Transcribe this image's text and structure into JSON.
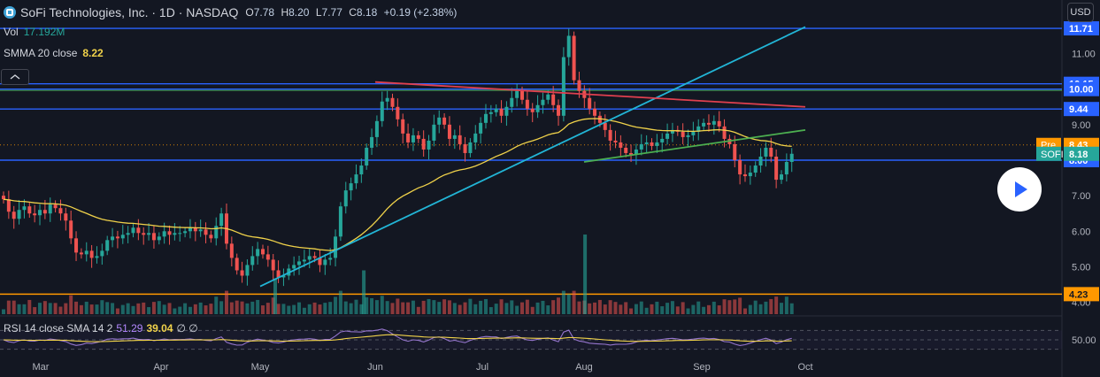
{
  "header": {
    "symbol_title": "SoFi Technologies, Inc. · 1D · NASDAQ",
    "ohlc": {
      "open_label": "O",
      "open": "7.78",
      "high_label": "H",
      "high": "8.20",
      "low_label": "L",
      "low": "7.77",
      "close_label": "C",
      "close": "8.18",
      "change": "+0.19 (+2.38%)"
    }
  },
  "indicators": {
    "volume": {
      "label": "Vol",
      "value": "17.192M"
    },
    "smma": {
      "label": "SMMA 20 close",
      "value": "8.22"
    },
    "rsi": {
      "label": "RSI 14 close SMA 14 2",
      "value1": "51.29",
      "value2": "39.04",
      "value3": "∅ ∅"
    }
  },
  "currency_button": "USD",
  "colors": {
    "background": "#131722",
    "up": "#26a69a",
    "down": "#ef5350",
    "smma": "#f0d24a",
    "horizontal_line": "#2962ff",
    "resistance_line": "#e0404f",
    "uptrend_line": "#22b5d6",
    "trend_line_green": "#4caf50",
    "support_orange": "#ff9800",
    "rsi_line": "#9575cd"
  },
  "icons": [
    "sofi-logo-icon",
    "collapse-chevron-icon",
    "play-icon"
  ],
  "chart_data": {
    "type": "candlestick",
    "price_axis": {
      "ticks": [
        4.0,
        5.0,
        6.0,
        7.0,
        8.0,
        9.0,
        10.0,
        11.0
      ],
      "tick_labels": [
        "4.00",
        "5.00",
        "6.00",
        "7.00",
        "8.00",
        "9.00",
        "10.00",
        "11.00"
      ],
      "range": [
        3.9,
        11.9
      ]
    },
    "time_axis": {
      "labels": [
        "Mar",
        "Apr",
        "May",
        "Jun",
        "Jul",
        "Aug",
        "Sep",
        "Oct"
      ]
    },
    "horizontal_lines": [
      {
        "price": 11.71,
        "label": "11.71",
        "color": "#2962ff"
      },
      {
        "price": 10.15,
        "label": "10.15",
        "color": "#2962ff"
      },
      {
        "price": 10.0,
        "label": "10.00",
        "color": "#2962ff"
      },
      {
        "price": 9.44,
        "label": "9.44",
        "color": "#2962ff"
      },
      {
        "price": 8.0,
        "label": "8.00",
        "color": "#2962ff"
      },
      {
        "price": 4.23,
        "label": "4.23",
        "color": "#ff9800"
      }
    ],
    "price_markers": [
      {
        "name": "Pre",
        "value": "8.43",
        "price": 8.43,
        "color": "#ff9800"
      },
      {
        "name": "SOFI",
        "value": "8.18",
        "price": 8.18,
        "color": "#26a69a"
      }
    ],
    "trend_lines": [
      {
        "color": "#22b5d6",
        "from": {
          "month": "May",
          "price": 4.45
        },
        "to": {
          "month": "Oct",
          "price": 11.75
        }
      },
      {
        "color": "#e0404f",
        "from": {
          "month": "Jun",
          "price": 10.2
        },
        "to": {
          "month": "Oct",
          "price": 9.5
        }
      },
      {
        "color": "#4caf50",
        "from": {
          "month": "Aug",
          "price": 7.95
        },
        "to": {
          "month": "Oct",
          "price": 8.85
        }
      }
    ],
    "closes": [
      6.9,
      6.55,
      6.35,
      6.6,
      6.7,
      6.5,
      6.45,
      6.6,
      6.5,
      6.75,
      6.65,
      6.5,
      6.3,
      5.8,
      5.4,
      5.35,
      5.45,
      5.25,
      5.3,
      5.45,
      5.75,
      5.85,
      5.8,
      5.9,
      5.95,
      6.1,
      5.95,
      5.9,
      5.95,
      5.75,
      5.85,
      6.0,
      5.9,
      5.95,
      5.95,
      6.0,
      6.1,
      6.0,
      6.05,
      5.9,
      5.8,
      6.15,
      6.5,
      5.65,
      5.25,
      4.9,
      4.75,
      5.05,
      5.3,
      5.5,
      5.35,
      5.2,
      4.9,
      4.7,
      4.75,
      4.95,
      5.05,
      5.15,
      5.2,
      5.3,
      5.25,
      5.05,
      5.2,
      5.25,
      5.85,
      6.7,
      7.15,
      7.35,
      7.6,
      7.85,
      8.35,
      8.65,
      9.1,
      9.65,
      9.75,
      9.5,
      9.15,
      8.75,
      8.5,
      8.7,
      8.6,
      8.3,
      8.55,
      9.0,
      9.2,
      9.0,
      8.6,
      8.7,
      8.45,
      8.2,
      8.5,
      8.75,
      9.05,
      9.3,
      9.35,
      9.45,
      9.25,
      9.5,
      9.75,
      9.95,
      9.7,
      9.45,
      9.35,
      9.55,
      9.7,
      9.85,
      9.55,
      9.25,
      10.9,
      11.5,
      10.25,
      9.95,
      9.75,
      9.45,
      9.25,
      9.05,
      8.85,
      8.55,
      8.5,
      8.35,
      8.2,
      8.15,
      8.3,
      8.45,
      8.5,
      8.4,
      8.5,
      8.6,
      8.75,
      8.85,
      8.8,
      8.65,
      8.7,
      8.8,
      8.95,
      9.05,
      9.0,
      9.1,
      8.95,
      8.6,
      8.45,
      8.0,
      7.6,
      7.55,
      7.65,
      7.85,
      8.1,
      8.35,
      8.1,
      7.45,
      7.6,
      7.95,
      8.18
    ],
    "volume_spikes": [
      {
        "month": "Jul",
        "offset_days": 27,
        "relative": 1.0
      },
      {
        "month": "Jun",
        "offset_days": -3,
        "relative": 0.55
      },
      {
        "month": "Apr",
        "offset_days": 30,
        "relative": 0.45
      }
    ],
    "rsi": {
      "upper_band": 70,
      "lower_band": 30,
      "label": "50.00",
      "value": 51.29,
      "sma": 39.04
    }
  }
}
